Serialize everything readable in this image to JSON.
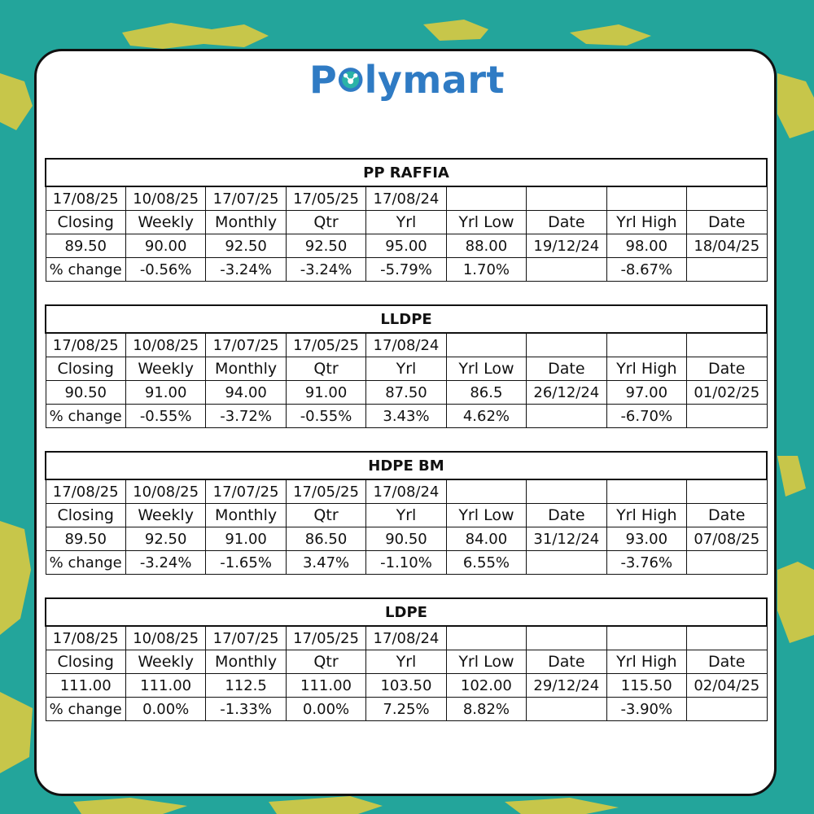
{
  "brand": {
    "name_left": "P",
    "name_right": "lymart",
    "color": "#2f7bc4"
  },
  "colors": {
    "background": "#23a59b",
    "land": "#c7c64a",
    "card": "#ffffff"
  },
  "tables": [
    {
      "title": "PP RAFFIA",
      "dates": [
        "17/08/25",
        "10/08/25",
        "17/07/25",
        "17/05/25",
        "17/08/24",
        "",
        "",
        "",
        ""
      ],
      "headers": [
        "Closing",
        "Weekly",
        "Monthly",
        "Qtr",
        "Yrl",
        "Yrl Low",
        "Date",
        "Yrl High",
        "Date"
      ],
      "values": [
        "89.50",
        "90.00",
        "92.50",
        "92.50",
        "95.00",
        "88.00",
        "19/12/24",
        "98.00",
        "18/04/25"
      ],
      "changes": [
        "% change",
        "-0.56%",
        "-3.24%",
        "-3.24%",
        "-5.79%",
        "1.70%",
        "",
        "-8.67%",
        ""
      ]
    },
    {
      "title": "LLDPE",
      "dates": [
        "17/08/25",
        "10/08/25",
        "17/07/25",
        "17/05/25",
        "17/08/24",
        "",
        "",
        "",
        ""
      ],
      "headers": [
        "Closing",
        "Weekly",
        "Monthly",
        "Qtr",
        "Yrl",
        "Yrl Low",
        "Date",
        "Yrl High",
        "Date"
      ],
      "values": [
        "90.50",
        "91.00",
        "94.00",
        "91.00",
        "87.50",
        "86.5",
        "26/12/24",
        "97.00",
        "01/02/25"
      ],
      "changes": [
        "% change",
        "-0.55%",
        "-3.72%",
        "-0.55%",
        "3.43%",
        "4.62%",
        "",
        "-6.70%",
        ""
      ]
    },
    {
      "title": "HDPE BM",
      "dates": [
        "17/08/25",
        "10/08/25",
        "17/07/25",
        "17/05/25",
        "17/08/24",
        "",
        "",
        "",
        ""
      ],
      "headers": [
        "Closing",
        "Weekly",
        "Monthly",
        "Qtr",
        "Yrl",
        "Yrl Low",
        "Date",
        "Yrl High",
        "Date"
      ],
      "values": [
        "89.50",
        "92.50",
        "91.00",
        "86.50",
        "90.50",
        "84.00",
        "31/12/24",
        "93.00",
        "07/08/25"
      ],
      "changes": [
        "% change",
        "-3.24%",
        "-1.65%",
        "3.47%",
        "-1.10%",
        "6.55%",
        "",
        "-3.76%",
        ""
      ]
    },
    {
      "title": "LDPE",
      "dates": [
        "17/08/25",
        "10/08/25",
        "17/07/25",
        "17/05/25",
        "17/08/24",
        "",
        "",
        "",
        ""
      ],
      "headers": [
        "Closing",
        "Weekly",
        "Monthly",
        "Qtr",
        "Yrl",
        "Yrl Low",
        "Date",
        "Yrl High",
        "Date"
      ],
      "values": [
        "111.00",
        "111.00",
        "112.5",
        "111.00",
        "103.50",
        "102.00",
        "29/12/24",
        "115.50",
        "02/04/25"
      ],
      "changes": [
        "% change",
        "0.00%",
        "-1.33%",
        "0.00%",
        "7.25%",
        "8.82%",
        "",
        "-3.90%",
        ""
      ]
    }
  ]
}
